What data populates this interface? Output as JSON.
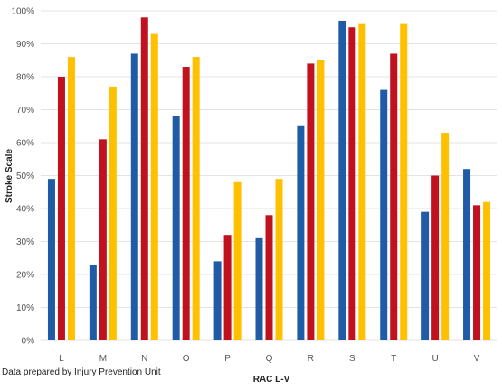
{
  "chart_data": {
    "type": "bar",
    "categories": [
      "L",
      "M",
      "N",
      "O",
      "P",
      "Q",
      "R",
      "S",
      "T",
      "U",
      "V"
    ],
    "series": [
      {
        "color": "#1f5ba6",
        "values": [
          49,
          23,
          87,
          68,
          24,
          31,
          65,
          97,
          76,
          39,
          52
        ]
      },
      {
        "color": "#c0111f",
        "values": [
          80,
          61,
          98,
          83,
          32,
          38,
          84,
          95,
          87,
          50,
          41
        ]
      },
      {
        "color": "#ffc000",
        "values": [
          86,
          77,
          93,
          86,
          48,
          49,
          85,
          96,
          96,
          63,
          42
        ]
      }
    ],
    "xlabel": "RAC L-V",
    "ylabel": "Stroke Scale",
    "ylim": [
      0,
      100
    ],
    "yticks": [
      "0%",
      "10%",
      "20%",
      "30%",
      "40%",
      "50%",
      "60%",
      "70%",
      "80%",
      "90%",
      "100%"
    ],
    "grid": true,
    "legend": "none"
  },
  "footnote": "Data prepared by Injury Prevention Unit"
}
